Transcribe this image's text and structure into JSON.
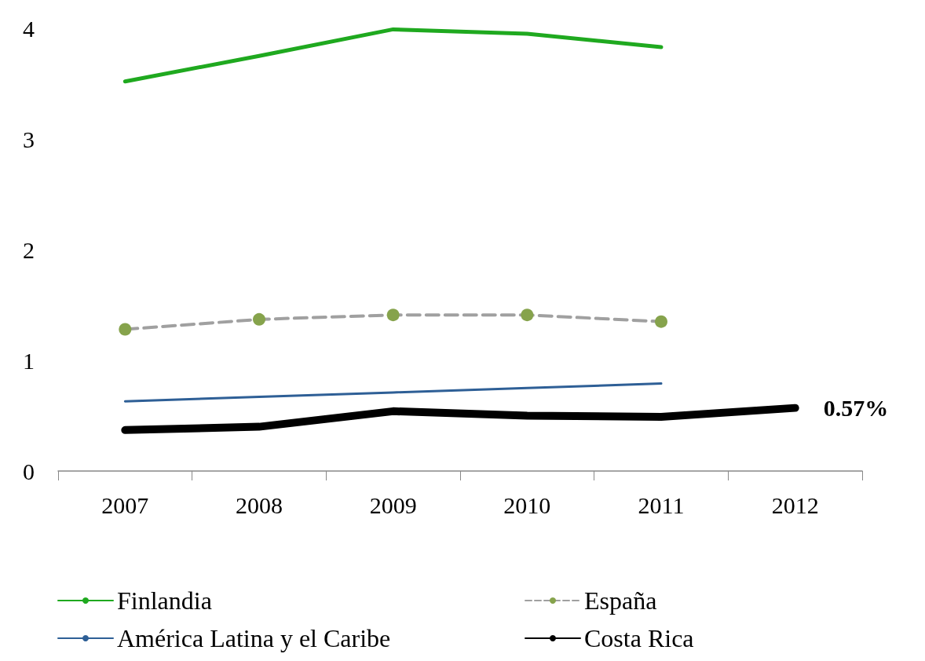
{
  "chart_data": {
    "type": "line",
    "categories": [
      "2007",
      "2008",
      "2009",
      "2010",
      "2011",
      "2012"
    ],
    "series": [
      {
        "name": "Finlandia",
        "color": "#1fa91f",
        "values": [
          3.52,
          3.75,
          3.99,
          3.95,
          3.83,
          null
        ]
      },
      {
        "name": "España",
        "color": "#a0a0a0",
        "line_style": "dashed",
        "marker": "circle",
        "colors": [
          "#86a34c",
          "#86a34c",
          "#86a34c",
          "#86a34c",
          "#86a34c",
          null
        ],
        "values": [
          1.28,
          1.37,
          1.41,
          1.41,
          1.35,
          null
        ]
      },
      {
        "name": "América Latina y el Caribe",
        "color": "#2e5f96",
        "values": [
          0.63,
          0.67,
          0.71,
          0.75,
          0.79,
          null
        ]
      },
      {
        "name": "Costa Rica",
        "color": "#000000",
        "values": [
          0.37,
          0.4,
          0.54,
          0.5,
          0.49,
          0.57
        ],
        "value_labels": [
          null,
          null,
          null,
          null,
          null,
          "0.57%"
        ]
      }
    ],
    "ylim": [
      0,
      4
    ],
    "yticks": [
      0,
      1,
      2,
      3,
      4
    ],
    "grid": false,
    "legend": "bottom",
    "marker": "none",
    "line_style": "solid"
  }
}
